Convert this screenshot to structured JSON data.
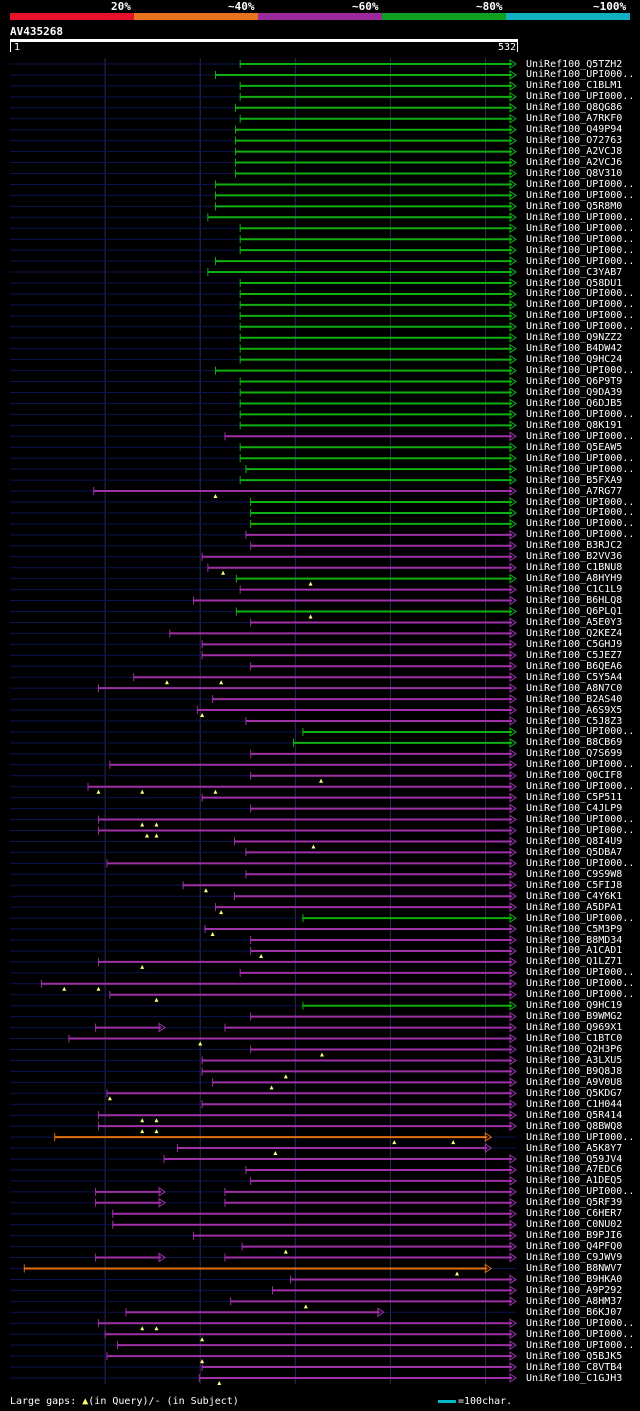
{
  "legend": [
    {
      "label": "20%",
      "color": "#e8102a"
    },
    {
      "label": "~40%",
      "color": "#e8731f"
    },
    {
      "label": "~60%",
      "color": "#9c2a9c"
    },
    {
      "label": "~80%",
      "color": "#10a020"
    },
    {
      "label": "~100%",
      "color": "#10b0c0"
    }
  ],
  "query": {
    "title": "AV435268",
    "start": "1",
    "end": "532",
    "length": 532
  },
  "colors": {
    "green": "#10b010",
    "purple": "#a030a8",
    "orange": "#e07010",
    "dim": "#0a1450",
    "gap": "#ffff80",
    "grid": "#2a2a5a"
  },
  "hits": [
    {
      "id": "UniRef100_Q5TZH2",
      "start": 242,
      "end": 532,
      "c": "green"
    },
    {
      "id": "UniRef100_UPI000..",
      "start": 216,
      "end": 532,
      "c": "green"
    },
    {
      "id": "UniRef100_C1BLM1",
      "start": 242,
      "end": 532,
      "c": "green"
    },
    {
      "id": "UniRef100_UPI000..",
      "start": 242,
      "end": 532,
      "c": "green"
    },
    {
      "id": "UniRef100_Q8QG86",
      "start": 237,
      "end": 532,
      "c": "green"
    },
    {
      "id": "UniRef100_A7RKF0",
      "start": 242,
      "end": 532,
      "c": "green"
    },
    {
      "id": "UniRef100_Q49P94",
      "start": 237,
      "end": 532,
      "c": "green"
    },
    {
      "id": "UniRef100_O72763",
      "start": 237,
      "end": 532,
      "c": "green"
    },
    {
      "id": "UniRef100_A2VCJ8",
      "start": 237,
      "end": 532,
      "c": "green"
    },
    {
      "id": "UniRef100_A2VCJ6",
      "start": 237,
      "end": 532,
      "c": "green"
    },
    {
      "id": "UniRef100_Q8V310",
      "start": 237,
      "end": 532,
      "c": "green"
    },
    {
      "id": "UniRef100_UPI000..",
      "start": 216,
      "end": 532,
      "c": "green"
    },
    {
      "id": "UniRef100_UPI000..",
      "start": 216,
      "end": 532,
      "c": "green"
    },
    {
      "id": "UniRef100_Q5R8M0",
      "start": 216,
      "end": 532,
      "c": "green"
    },
    {
      "id": "UniRef100_UPI000..",
      "start": 208,
      "end": 532,
      "c": "green"
    },
    {
      "id": "UniRef100_UPI000..",
      "start": 242,
      "end": 532,
      "c": "green"
    },
    {
      "id": "UniRef100_UPI000..",
      "start": 242,
      "end": 532,
      "c": "green"
    },
    {
      "id": "UniRef100_UPI000..",
      "start": 242,
      "end": 532,
      "c": "green"
    },
    {
      "id": "UniRef100_UPI000..",
      "start": 216,
      "end": 532,
      "c": "green"
    },
    {
      "id": "UniRef100_C3YAB7",
      "start": 208,
      "end": 532,
      "c": "green"
    },
    {
      "id": "UniRef100_Q58DU1",
      "start": 242,
      "end": 532,
      "c": "green"
    },
    {
      "id": "UniRef100_UPI000..",
      "start": 242,
      "end": 532,
      "c": "green"
    },
    {
      "id": "UniRef100_UPI000..",
      "start": 242,
      "end": 532,
      "c": "green"
    },
    {
      "id": "UniRef100_UPI000..",
      "start": 242,
      "end": 532,
      "c": "green"
    },
    {
      "id": "UniRef100_UPI000..",
      "start": 242,
      "end": 532,
      "c": "green"
    },
    {
      "id": "UniRef100_Q9NZZ2",
      "start": 242,
      "end": 532,
      "c": "green"
    },
    {
      "id": "UniRef100_B4DW42",
      "start": 242,
      "end": 532,
      "c": "green"
    },
    {
      "id": "UniRef100_Q9HC24",
      "start": 242,
      "end": 532,
      "c": "green"
    },
    {
      "id": "UniRef100_UPI000..",
      "start": 216,
      "end": 532,
      "c": "green"
    },
    {
      "id": "UniRef100_Q6P9T9",
      "start": 242,
      "end": 532,
      "c": "green"
    },
    {
      "id": "UniRef100_Q9DA39",
      "start": 242,
      "end": 532,
      "c": "green"
    },
    {
      "id": "UniRef100_Q6DJB5",
      "start": 242,
      "end": 532,
      "c": "green"
    },
    {
      "id": "UniRef100_UPI000..",
      "start": 242,
      "end": 532,
      "c": "green"
    },
    {
      "id": "UniRef100_Q8K191",
      "start": 242,
      "end": 532,
      "c": "green"
    },
    {
      "id": "UniRef100_UPI000..",
      "start": 226,
      "end": 532,
      "c": "purple"
    },
    {
      "id": "UniRef100_Q5EAW5",
      "start": 242,
      "end": 532,
      "c": "green"
    },
    {
      "id": "UniRef100_UPI000..",
      "start": 242,
      "end": 532,
      "c": "green"
    },
    {
      "id": "UniRef100_UPI000..",
      "start": 248,
      "end": 532,
      "c": "green"
    },
    {
      "id": "UniRef100_B5FXA9",
      "start": 242,
      "end": 532,
      "c": "green"
    },
    {
      "id": "UniRef100_A7RG77",
      "start": 88,
      "end": 532,
      "c": "purple",
      "g": [
        216
      ]
    },
    {
      "id": "UniRef100_UPI000..",
      "start": 253,
      "end": 532,
      "c": "green"
    },
    {
      "id": "UniRef100_UPI000..",
      "start": 253,
      "end": 532,
      "c": "green"
    },
    {
      "id": "UniRef100_UPI000..",
      "start": 253,
      "end": 532,
      "c": "green"
    },
    {
      "id": "UniRef100_UPI000..",
      "start": 248,
      "end": 532,
      "c": "purple"
    },
    {
      "id": "UniRef100_B3RJC2",
      "start": 253,
      "end": 532,
      "c": "purple"
    },
    {
      "id": "UniRef100_B2VV36",
      "start": 202,
      "end": 532,
      "c": "purple"
    },
    {
      "id": "UniRef100_C1BNU8",
      "start": 208,
      "end": 532,
      "c": "purple",
      "g": [
        224
      ]
    },
    {
      "id": "UniRef100_A8HYH9",
      "start": 238,
      "end": 532,
      "c": "green",
      "g": [
        316
      ]
    },
    {
      "id": "UniRef100_C1C1L9",
      "start": 242,
      "end": 532,
      "c": "purple"
    },
    {
      "id": "UniRef100_B6HLQ8",
      "start": 193,
      "end": 532,
      "c": "purple"
    },
    {
      "id": "UniRef100_Q6PLQ1",
      "start": 238,
      "end": 532,
      "c": "green",
      "g": [
        316
      ]
    },
    {
      "id": "UniRef100_A5E0Y3",
      "start": 253,
      "end": 532,
      "c": "purple"
    },
    {
      "id": "UniRef100_Q2KEZ4",
      "start": 168,
      "end": 532,
      "c": "purple"
    },
    {
      "id": "UniRef100_C5GHJ9",
      "start": 202,
      "end": 532,
      "c": "purple"
    },
    {
      "id": "UniRef100_C5JEZ7",
      "start": 202,
      "end": 532,
      "c": "purple"
    },
    {
      "id": "UniRef100_B6QEA6",
      "start": 253,
      "end": 532,
      "c": "purple"
    },
    {
      "id": "UniRef100_C5Y5A4",
      "start": 130,
      "end": 532,
      "c": "purple",
      "g": [
        165,
        222
      ]
    },
    {
      "id": "UniRef100_A8N7C0",
      "start": 93,
      "end": 532,
      "c": "purple"
    },
    {
      "id": "UniRef100_B2AS40",
      "start": 213,
      "end": 532,
      "c": "purple"
    },
    {
      "id": "UniRef100_A6S9X5",
      "start": 197,
      "end": 532,
      "c": "purple",
      "g": [
        202
      ]
    },
    {
      "id": "UniRef100_C5J8Z3",
      "start": 248,
      "end": 532,
      "c": "purple"
    },
    {
      "id": "UniRef100_UPI000..",
      "start": 308,
      "end": 532,
      "c": "green"
    },
    {
      "id": "UniRef100_B8CB69",
      "start": 298,
      "end": 532,
      "c": "green"
    },
    {
      "id": "UniRef100_Q7S699",
      "start": 253,
      "end": 532,
      "c": "purple"
    },
    {
      "id": "UniRef100_UPI000..",
      "start": 105,
      "end": 532,
      "c": "purple"
    },
    {
      "id": "UniRef100_Q0CIF8",
      "start": 253,
      "end": 532,
      "c": "purple",
      "g": [
        327
      ]
    },
    {
      "id": "UniRef100_UPI000..",
      "start": 82,
      "end": 532,
      "c": "purple",
      "g": [
        93,
        139,
        216
      ]
    },
    {
      "id": "UniRef100_C5P511",
      "start": 202,
      "end": 532,
      "c": "purple"
    },
    {
      "id": "UniRef100_C4JLP9",
      "start": 253,
      "end": 532,
      "c": "purple"
    },
    {
      "id": "UniRef100_UPI000..",
      "start": 93,
      "end": 532,
      "c": "purple",
      "g": [
        139,
        154
      ]
    },
    {
      "id": "UniRef100_UPI000..",
      "start": 93,
      "end": 532,
      "c": "purple",
      "g": [
        144,
        154
      ]
    },
    {
      "id": "UniRef100_Q8I4U9",
      "start": 236,
      "end": 532,
      "c": "purple",
      "g": [
        319
      ]
    },
    {
      "id": "UniRef100_Q5DBA7",
      "start": 248,
      "end": 532,
      "c": "purple"
    },
    {
      "id": "UniRef100_UPI000..",
      "start": 102,
      "end": 532,
      "c": "purple"
    },
    {
      "id": "UniRef100_C9S9W8",
      "start": 248,
      "end": 532,
      "c": "purple"
    },
    {
      "id": "UniRef100_C5FIJ8",
      "start": 182,
      "end": 532,
      "c": "purple",
      "g": [
        206
      ]
    },
    {
      "id": "UniRef100_C4Y6K1",
      "start": 236,
      "end": 532,
      "c": "purple"
    },
    {
      "id": "UniRef100_A5DPA1",
      "start": 216,
      "end": 532,
      "c": "purple",
      "g": [
        222
      ]
    },
    {
      "id": "UniRef100_UPI000..",
      "start": 308,
      "end": 532,
      "c": "green"
    },
    {
      "id": "UniRef100_C5M3P9",
      "start": 205,
      "end": 532,
      "c": "purple",
      "g": [
        213
      ]
    },
    {
      "id": "UniRef100_B8MD34",
      "start": 253,
      "end": 532,
      "c": "purple"
    },
    {
      "id": "UniRef100_A1CAD1",
      "start": 253,
      "end": 532,
      "c": "purple",
      "g": [
        264
      ]
    },
    {
      "id": "UniRef100_Q1LZ71",
      "start": 93,
      "end": 532,
      "c": "purple",
      "g": [
        139
      ]
    },
    {
      "id": "UniRef100_UPI000..",
      "start": 242,
      "end": 532,
      "c": "purple"
    },
    {
      "id": "UniRef100_UPI000..",
      "start": 33,
      "end": 532,
      "c": "purple",
      "g": [
        57,
        93
      ]
    },
    {
      "id": "UniRef100_UPI000..",
      "start": 105,
      "end": 532,
      "c": "purple",
      "g": [
        154
      ]
    },
    {
      "id": "UniRef100_Q9HC19",
      "start": 308,
      "end": 532,
      "c": "green"
    },
    {
      "id": "UniRef100_B9WMG2",
      "start": 253,
      "end": 532,
      "c": "purple"
    },
    {
      "id": "UniRef100_Q969X1",
      "start": 90,
      "end": 532,
      "c": "purple",
      "seg": [
        [
          90,
          163
        ],
        [
          226,
          532
        ]
      ]
    },
    {
      "id": "UniRef100_C1BTC0",
      "start": 62,
      "end": 532,
      "c": "purple",
      "g": [
        200
      ]
    },
    {
      "id": "UniRef100_Q2H3P6",
      "start": 253,
      "end": 532,
      "c": "purple",
      "g": [
        328
      ]
    },
    {
      "id": "UniRef100_A3LXU5",
      "start": 202,
      "end": 532,
      "c": "purple"
    },
    {
      "id": "UniRef100_B9Q8J8",
      "start": 202,
      "end": 532,
      "c": "purple",
      "g": [
        290
      ]
    },
    {
      "id": "UniRef100_A9V0U8",
      "start": 213,
      "end": 532,
      "c": "purple",
      "g": [
        275
      ]
    },
    {
      "id": "UniRef100_Q5KDG7",
      "start": 102,
      "end": 532,
      "c": "purple",
      "g": [
        105
      ]
    },
    {
      "id": "UniRef100_C1H044",
      "start": 202,
      "end": 532,
      "c": "purple"
    },
    {
      "id": "UniRef100_Q5R414",
      "start": 93,
      "end": 532,
      "c": "purple",
      "g": [
        139,
        154
      ]
    },
    {
      "id": "UniRef100_Q8BWQ8",
      "start": 93,
      "end": 532,
      "c": "purple",
      "g": [
        139,
        154
      ]
    },
    {
      "id": "UniRef100_UPI000..",
      "start": 47,
      "end": 506,
      "c": "orange",
      "g": [
        404,
        466
      ]
    },
    {
      "id": "UniRef100_A5K8Y7",
      "start": 176,
      "end": 506,
      "c": "purple",
      "g": [
        279
      ]
    },
    {
      "id": "UniRef100_Q59JV4",
      "start": 162,
      "end": 532,
      "c": "purple"
    },
    {
      "id": "UniRef100_A7EDC6",
      "start": 248,
      "end": 532,
      "c": "purple"
    },
    {
      "id": "UniRef100_A1DEQ5",
      "start": 253,
      "end": 532,
      "c": "purple"
    },
    {
      "id": "UniRef100_UPI000..",
      "start": 90,
      "end": 532,
      "c": "purple",
      "seg": [
        [
          90,
          163
        ],
        [
          226,
          532
        ]
      ]
    },
    {
      "id": "UniRef100_Q5RF39",
      "start": 90,
      "end": 532,
      "c": "purple",
      "seg": [
        [
          90,
          163
        ],
        [
          226,
          532
        ]
      ]
    },
    {
      "id": "UniRef100_C6HER7",
      "start": 108,
      "end": 532,
      "c": "purple"
    },
    {
      "id": "UniRef100_C0NU02",
      "start": 108,
      "end": 532,
      "c": "purple"
    },
    {
      "id": "UniRef100_B9PJI6",
      "start": 193,
      "end": 532,
      "c": "purple"
    },
    {
      "id": "UniRef100_Q4PFQ0",
      "start": 244,
      "end": 532,
      "c": "purple",
      "g": [
        290
      ]
    },
    {
      "id": "UniRef100_C9JWV9",
      "start": 90,
      "end": 532,
      "c": "purple",
      "seg": [
        [
          90,
          163
        ],
        [
          226,
          532
        ]
      ]
    },
    {
      "id": "UniRef100_B8NWV7",
      "start": 15,
      "end": 506,
      "c": "orange",
      "g": [
        470
      ]
    },
    {
      "id": "UniRef100_B9HKA0",
      "start": 295,
      "end": 532,
      "c": "purple"
    },
    {
      "id": "UniRef100_A9P292",
      "start": 276,
      "end": 532,
      "c": "purple"
    },
    {
      "id": "UniRef100_A8HM37",
      "start": 232,
      "end": 532,
      "c": "purple",
      "g": [
        311
      ]
    },
    {
      "id": "UniRef100_B6KJ07",
      "start": 122,
      "end": 393,
      "c": "purple"
    },
    {
      "id": "UniRef100_UPI000..",
      "start": 93,
      "end": 532,
      "c": "purple",
      "g": [
        139,
        154
      ]
    },
    {
      "id": "UniRef100_UPI000..",
      "start": 100,
      "end": 532,
      "c": "purple",
      "g": [
        202
      ]
    },
    {
      "id": "UniRef100_UPI000..",
      "start": 113,
      "end": 532,
      "c": "purple"
    },
    {
      "id": "UniRef100_Q5BJK5",
      "start": 102,
      "end": 532,
      "c": "purple",
      "g": [
        202
      ]
    },
    {
      "id": "UniRef100_C8VTB4",
      "start": 202,
      "end": 532,
      "c": "purple"
    },
    {
      "id": "UniRef100_C1GJH3",
      "start": 199,
      "end": 532,
      "c": "purple",
      "g": [
        220
      ]
    }
  ],
  "footer": {
    "gaps_text_prefix": "Large gaps: ",
    "gaps_query": "(in Query)/- (in Subject)",
    "scale_text": "=100char."
  }
}
